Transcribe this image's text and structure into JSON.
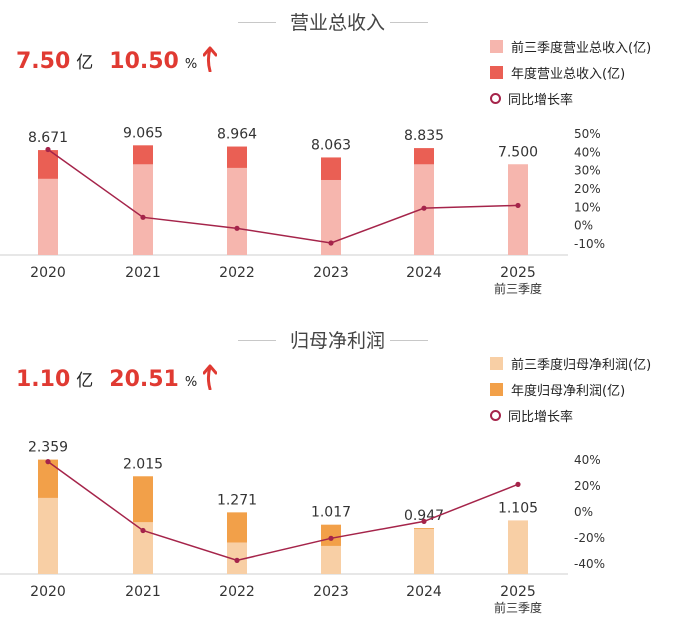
{
  "colors": {
    "top_prior": "#f6b6ae",
    "top_annual": "#ea5f54",
    "bottom_prior": "#f8cfa5",
    "bottom_annual": "#f2a049",
    "growth_line": "#a5244a",
    "highlight": "#e03a32"
  },
  "panels": {
    "top": {
      "title": "营业总收入",
      "kpi": {
        "value": "7.50",
        "value_unit": "亿",
        "pct": "10.50",
        "pct_unit": "%",
        "arrow": "up-arrow-icon"
      },
      "legend": [
        "前三季度营业总收入(亿)",
        "年度营业总收入(亿)",
        "同比增长率"
      ]
    },
    "bottom": {
      "title": "归母净利润",
      "kpi": {
        "value": "1.10",
        "value_unit": "亿",
        "pct": "20.51",
        "pct_unit": "%",
        "arrow": "up-arrow-icon"
      },
      "legend": [
        "前三季度归母净利润(亿)",
        "年度归母净利润(亿)",
        "同比增长率"
      ]
    }
  },
  "chart_data": [
    {
      "type": "bar",
      "title": "营业总收入",
      "categories": [
        "2020",
        "2021",
        "2022",
        "2023",
        "2024",
        "2025"
      ],
      "category_sublabels": [
        "",
        "",
        "",
        "",
        "",
        "前三季度"
      ],
      "series": [
        {
          "name": "前三季度营业总收入(亿)",
          "values": [
            6.3,
            7.5,
            7.2,
            6.2,
            7.5,
            7.5
          ]
        },
        {
          "name": "年度营业总收入(亿)",
          "values": [
            8.671,
            9.065,
            8.964,
            8.063,
            8.835,
            null
          ]
        },
        {
          "name": "同比增长率",
          "values": [
            41,
            4,
            -2,
            -10,
            9,
            10.5
          ],
          "axis": "right"
        }
      ],
      "data_labels": [
        "8.671",
        "9.065",
        "8.964",
        "8.063",
        "8.835",
        "7.500"
      ],
      "y_right": {
        "min": -10,
        "max": 50,
        "ticks": [
          "50%",
          "40%",
          "30%",
          "20%",
          "10%",
          "0%",
          "-10%"
        ]
      }
    },
    {
      "type": "bar",
      "title": "归母净利润",
      "categories": [
        "2020",
        "2021",
        "2022",
        "2023",
        "2024",
        "2025"
      ],
      "category_sublabels": [
        "",
        "",
        "",
        "",
        "",
        "前三季度"
      ],
      "series": [
        {
          "name": "前三季度归母净利润(亿)",
          "values": [
            1.57,
            1.07,
            0.65,
            0.58,
            0.93,
            1.105
          ]
        },
        {
          "name": "年度归母净利润(亿)",
          "values": [
            2.359,
            2.015,
            1.271,
            1.017,
            0.947,
            null
          ]
        },
        {
          "name": "同比增长率",
          "values": [
            38,
            -15,
            -38,
            -21,
            -8,
            20.5
          ],
          "axis": "right"
        }
      ],
      "data_labels": [
        "2.359",
        "2.015",
        "1.271",
        "1.017",
        "0.947",
        "1.105"
      ],
      "y_right": {
        "min": -40,
        "max": 40,
        "ticks": [
          "40%",
          "20%",
          "0%",
          "-20%",
          "-40%"
        ]
      }
    }
  ]
}
